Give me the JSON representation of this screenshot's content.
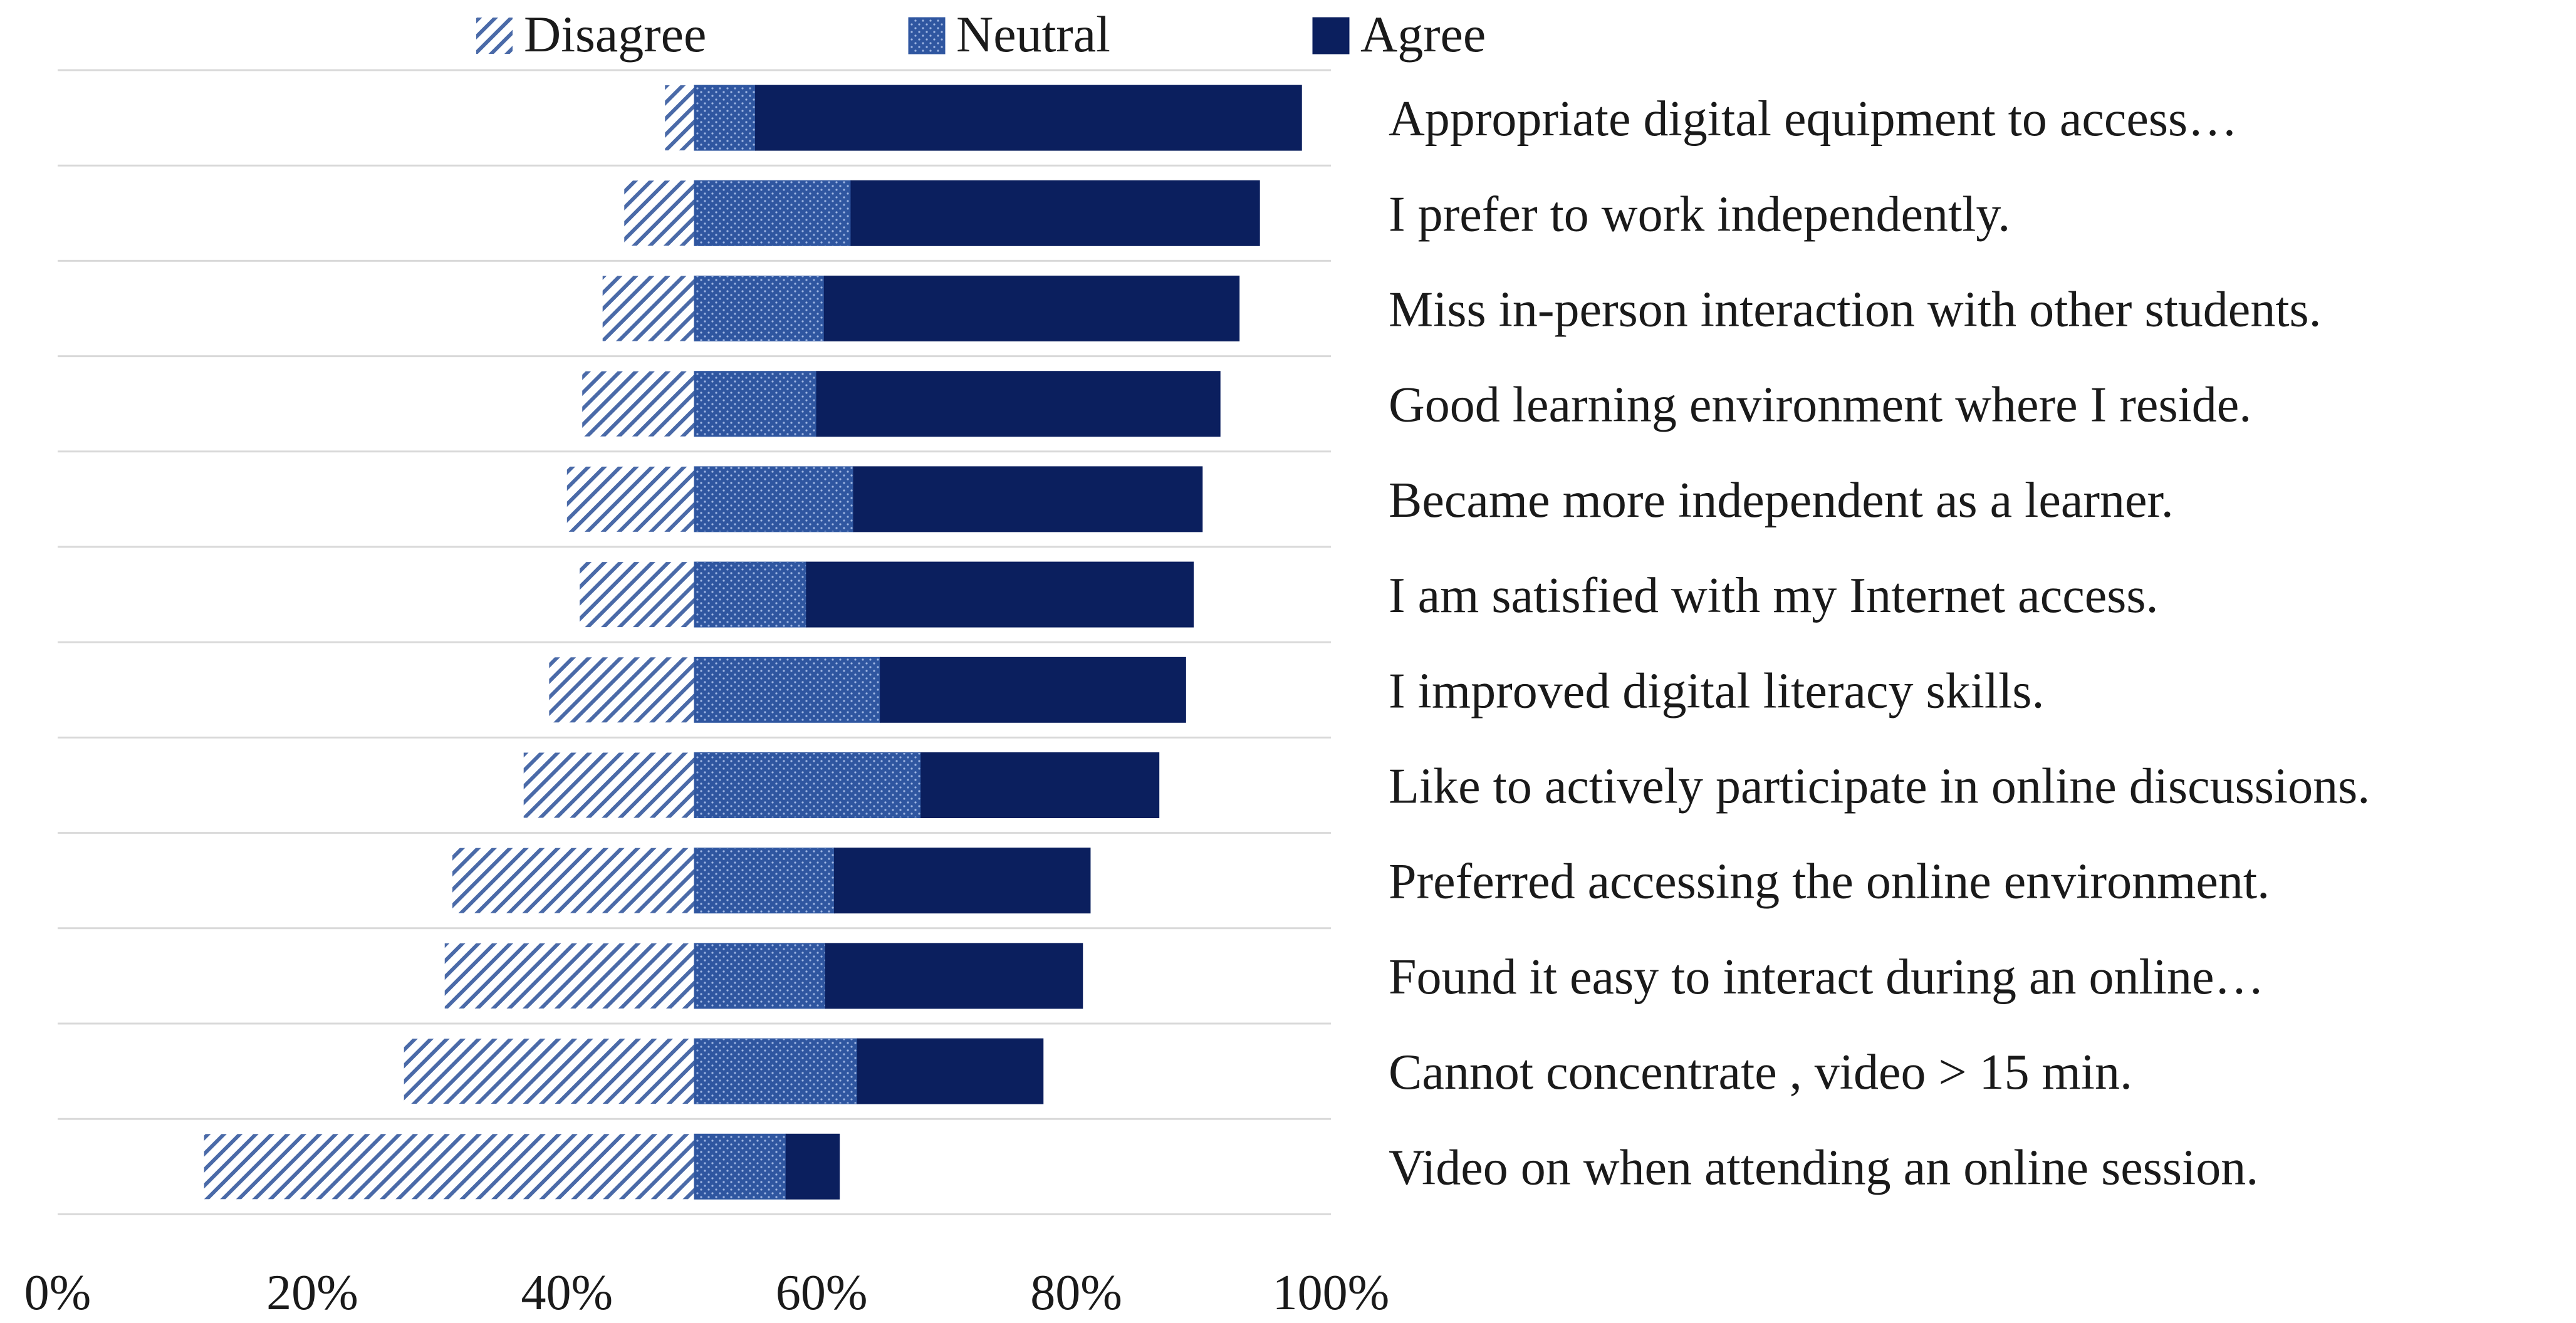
{
  "chart_data": {
    "type": "bar",
    "orientation": "horizontal",
    "stacked": "diverging",
    "x_range": [
      0,
      100
    ],
    "x_tick_labels": [
      "0%",
      "20%",
      "40%",
      "60%",
      "80%",
      "100%"
    ],
    "x_ticks": [
      0,
      20,
      40,
      60,
      80,
      100
    ],
    "grid": "horizontal",
    "legend_position": "top",
    "categories": [
      "Appropriate digital equipment to access…",
      "I prefer to work independently.",
      "Miss  in-person interaction with other students.",
      "Good learning environment where I reside.",
      "Became more independent as a learner.",
      "I am satisfied with my Internet access.",
      "I improved  digital literacy skills.",
      "Like to actively participate in online discussions.",
      "Preferred accessing the online  environment.",
      "Found it easy to interact  during an online…",
      "Cannot concentrate ,  video >  15 min.",
      "Video on when attending an online session."
    ],
    "series": [
      {
        "name": "Disagree",
        "color": "#4a6aa8",
        "pattern": "diagonal-hatch",
        "values": [
          2.3,
          5.5,
          7.2,
          8.8,
          10,
          9,
          11.4,
          13.4,
          19,
          19.6,
          22.8,
          38.5
        ]
      },
      {
        "name": "Neutral",
        "color": "#2f56a0",
        "pattern": "dotted",
        "values": [
          4.8,
          12.3,
          10.2,
          9.6,
          12.5,
          8.8,
          14.6,
          17.8,
          11,
          10.3,
          12.8,
          7.2
        ]
      },
      {
        "name": "Agree",
        "color": "#0b1f5e",
        "pattern": "solid",
        "values": [
          42.9,
          32.1,
          32.6,
          31.7,
          27.4,
          30.4,
          24,
          18.7,
          20.1,
          20.2,
          14.6,
          4.2
        ]
      }
    ],
    "center_value": 50,
    "colors": {
      "grid": "#d9d9d9",
      "text": "#1a1a1a"
    }
  }
}
